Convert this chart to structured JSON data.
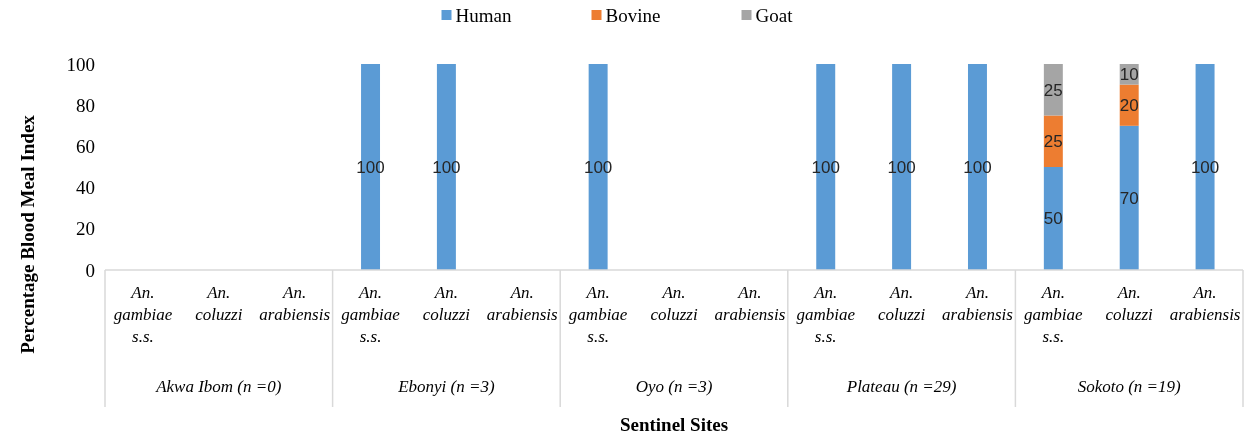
{
  "chart_data": {
    "type": "bar",
    "stacked": true,
    "xlabel": "Sentinel Sites",
    "ylabel": "Percentage Blood Meal Index",
    "categories": [
      "An. gambiae s.s.",
      "An. coluzzi",
      "An. arabiensis",
      "An. gambiae s.s.",
      "An. coluzzi",
      "An. arabiensis",
      "An. gambiae s.s.",
      "An. coluzzi",
      "An. arabiensis",
      "An. gambiae s.s.",
      "An. coluzzi",
      "An. arabiensis",
      "An. gambiae s.s.",
      "An. coluzzi",
      "An. arabiensis"
    ],
    "annotations": [
      "Akwa Ibom (n =0)",
      "Ebonyi (n =3)",
      "Oyo (n =3)",
      "Plateau (n =29)",
      "Sokoto (n =19)"
    ],
    "series": [
      {
        "name": "Human",
        "color": "#5b9bd5",
        "values": [
          null,
          null,
          null,
          100,
          100,
          null,
          100,
          null,
          null,
          100,
          100,
          100,
          50,
          70,
          100
        ]
      },
      {
        "name": "Bovine",
        "color": "#ed7d31",
        "values": [
          null,
          null,
          null,
          null,
          null,
          null,
          null,
          null,
          null,
          null,
          null,
          null,
          25,
          20,
          null
        ]
      },
      {
        "name": "Goat",
        "color": "#a5a5a5",
        "values": [
          null,
          null,
          null,
          null,
          null,
          null,
          null,
          null,
          null,
          null,
          null,
          null,
          25,
          10,
          null
        ]
      }
    ],
    "ylim": [
      0,
      100
    ],
    "yticks": [
      0,
      20,
      40,
      60,
      80,
      100
    ],
    "grid": false,
    "legend": "top",
    "data_labels": true
  }
}
